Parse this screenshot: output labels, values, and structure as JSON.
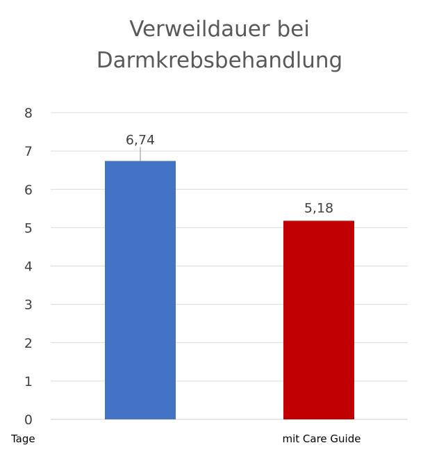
{
  "chart_data": {
    "type": "bar",
    "title_lines": [
      "Verweildauer bei",
      "Darmkrebsbehandlung"
    ],
    "categories": [
      "Tage",
      "mit Care Guide"
    ],
    "values": [
      6.74,
      5.18
    ],
    "data_labels": [
      "6,74",
      "5,18"
    ],
    "bar_colors": [
      "#4472C4",
      "#C00000"
    ],
    "ylim": [
      0,
      8
    ],
    "yticks": [
      "0",
      "1",
      "2",
      "3",
      "4",
      "5",
      "6",
      "7",
      "8"
    ],
    "grid": true,
    "legend": "none"
  }
}
